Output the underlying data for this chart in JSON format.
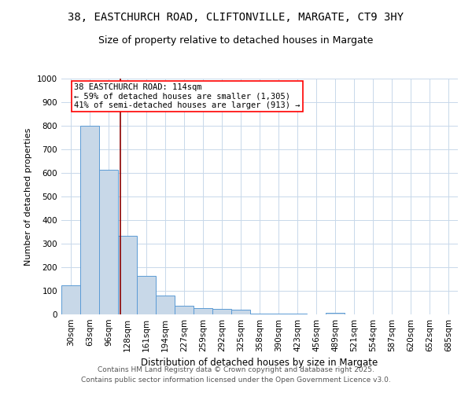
{
  "title": "38, EASTCHURCH ROAD, CLIFTONVILLE, MARGATE, CT9 3HY",
  "subtitle": "Size of property relative to detached houses in Margate",
  "xlabel": "Distribution of detached houses by size in Margate",
  "ylabel": "Number of detached properties",
  "bar_color": "#c8d8e8",
  "bar_edge_color": "#5b9bd5",
  "categories": [
    "30sqm",
    "63sqm",
    "96sqm",
    "128sqm",
    "161sqm",
    "194sqm",
    "227sqm",
    "259sqm",
    "292sqm",
    "325sqm",
    "358sqm",
    "390sqm",
    "423sqm",
    "456sqm",
    "489sqm",
    "521sqm",
    "554sqm",
    "587sqm",
    "620sqm",
    "652sqm",
    "685sqm"
  ],
  "values": [
    122,
    800,
    615,
    335,
    163,
    80,
    38,
    26,
    22,
    20,
    5,
    5,
    2,
    0,
    8,
    0,
    0,
    0,
    0,
    0,
    0
  ],
  "ylim": [
    0,
    1000
  ],
  "yticks": [
    0,
    100,
    200,
    300,
    400,
    500,
    600,
    700,
    800,
    900,
    1000
  ],
  "vline_x": 2.62,
  "annotation_text": "38 EASTCHURCH ROAD: 114sqm\n← 59% of detached houses are smaller (1,305)\n41% of semi-detached houses are larger (913) →",
  "footer_line1": "Contains HM Land Registry data © Crown copyright and database right 2025.",
  "footer_line2": "Contains public sector information licensed under the Open Government Licence v3.0.",
  "bg_color": "#ffffff",
  "grid_color": "#c8d8ea",
  "title_fontsize": 10,
  "subtitle_fontsize": 9,
  "annotation_fontsize": 7.5,
  "footer_fontsize": 6.5,
  "ylabel_fontsize": 8,
  "xlabel_fontsize": 8.5,
  "tick_fontsize": 7.5
}
